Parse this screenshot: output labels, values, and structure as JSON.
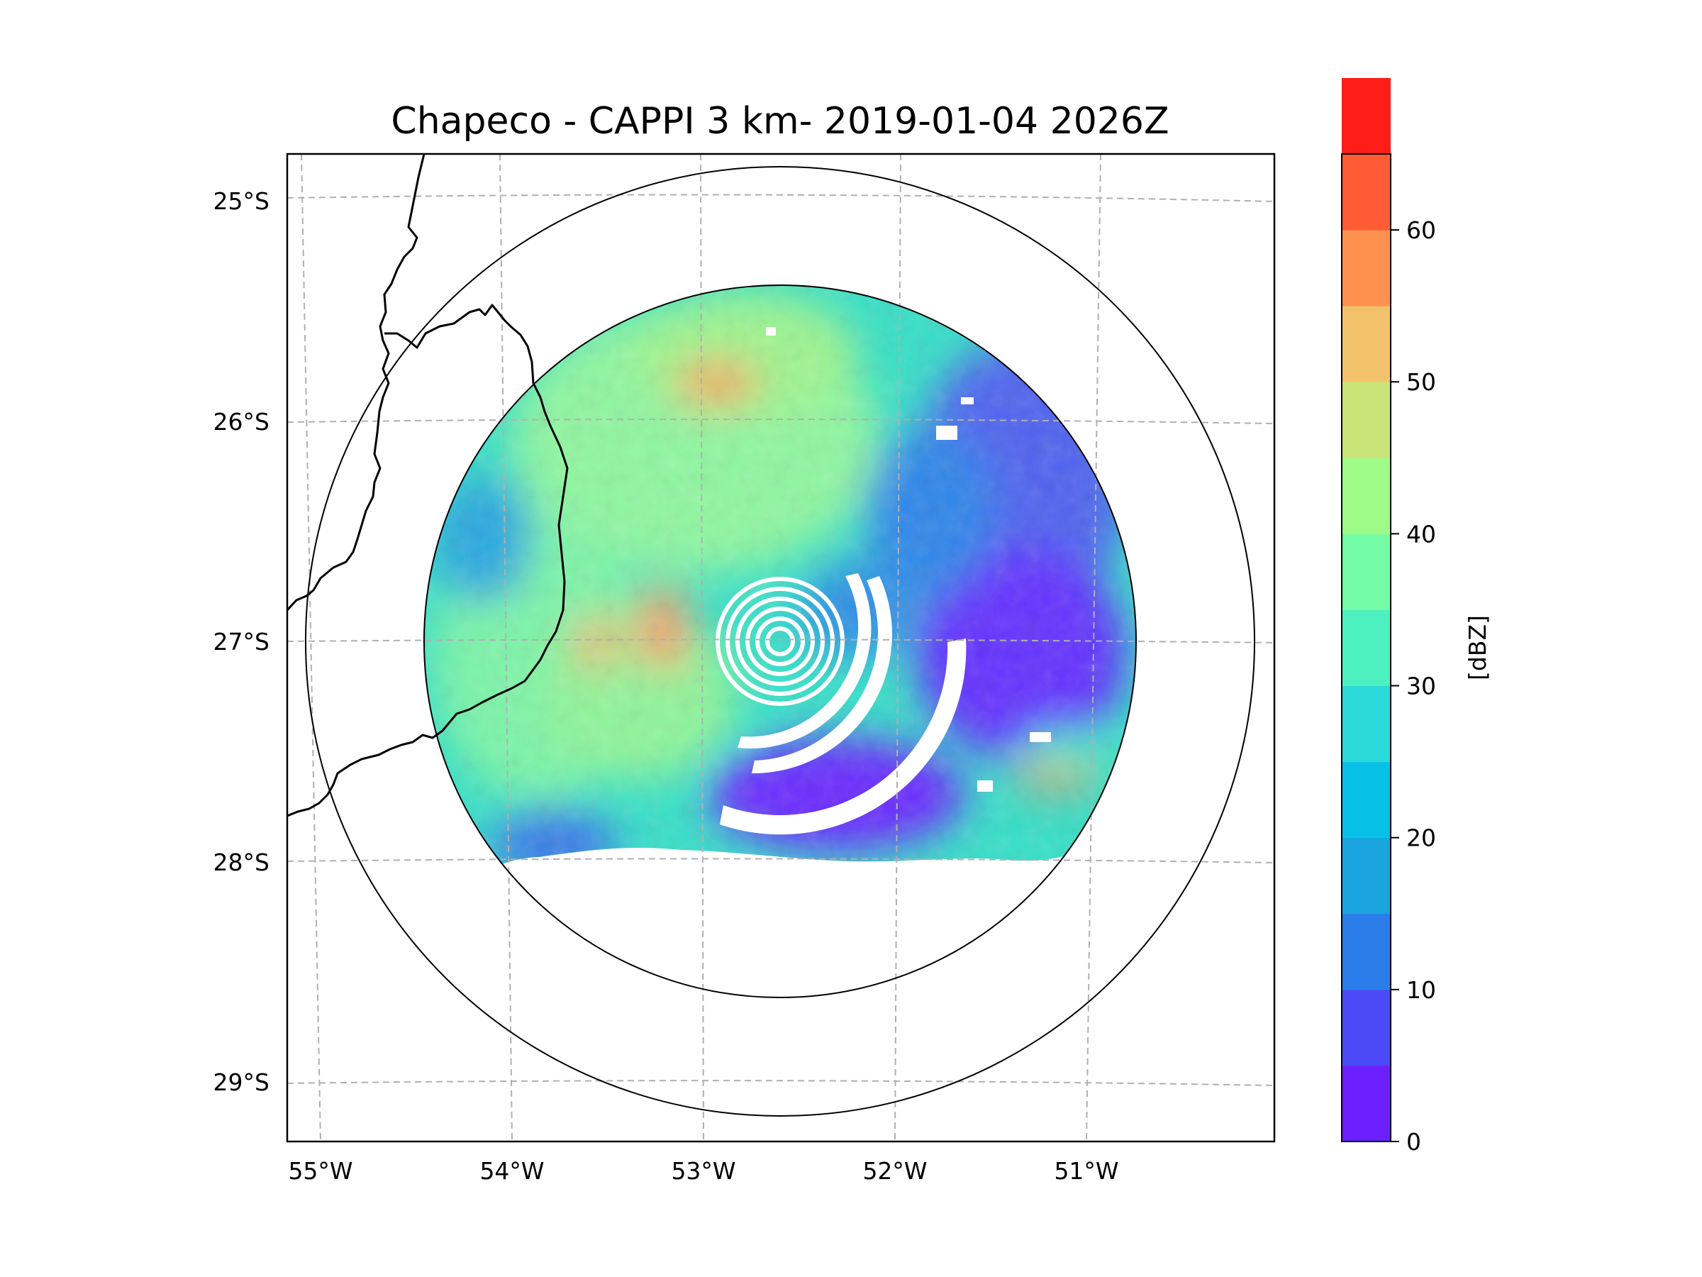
{
  "title": "Chapeco - CAPPI 3 km- 2019-01-04 2026Z",
  "map": {
    "lat_labels": [
      "25°S",
      "26°S",
      "27°S",
      "28°S",
      "29°S"
    ],
    "lon_labels": [
      "55°W",
      "54°W",
      "53°W",
      "52°W",
      "51°W"
    ],
    "radar_center": {
      "lat": -27.0,
      "lon": -52.6
    },
    "range_rings_km": [
      160,
      240
    ]
  },
  "colorbar": {
    "label": "[dBZ]",
    "tick_labels": [
      "0",
      "10",
      "20",
      "30",
      "40",
      "50",
      "60"
    ],
    "min": 0,
    "max": 65,
    "step": 5,
    "colors": [
      "#6e1fff",
      "#4a4bf6",
      "#2b7de9",
      "#1aa4e0",
      "#08c1e6",
      "#2bdad8",
      "#4df0bf",
      "#74fba6",
      "#9ffb88",
      "#c9e577",
      "#f2c26a",
      "#ff914f",
      "#ff5c35",
      "#ff1d17"
    ]
  },
  "colors": {
    "border": "#000000",
    "grid": "#b0b0b0",
    "no_data": "#ffffff"
  }
}
